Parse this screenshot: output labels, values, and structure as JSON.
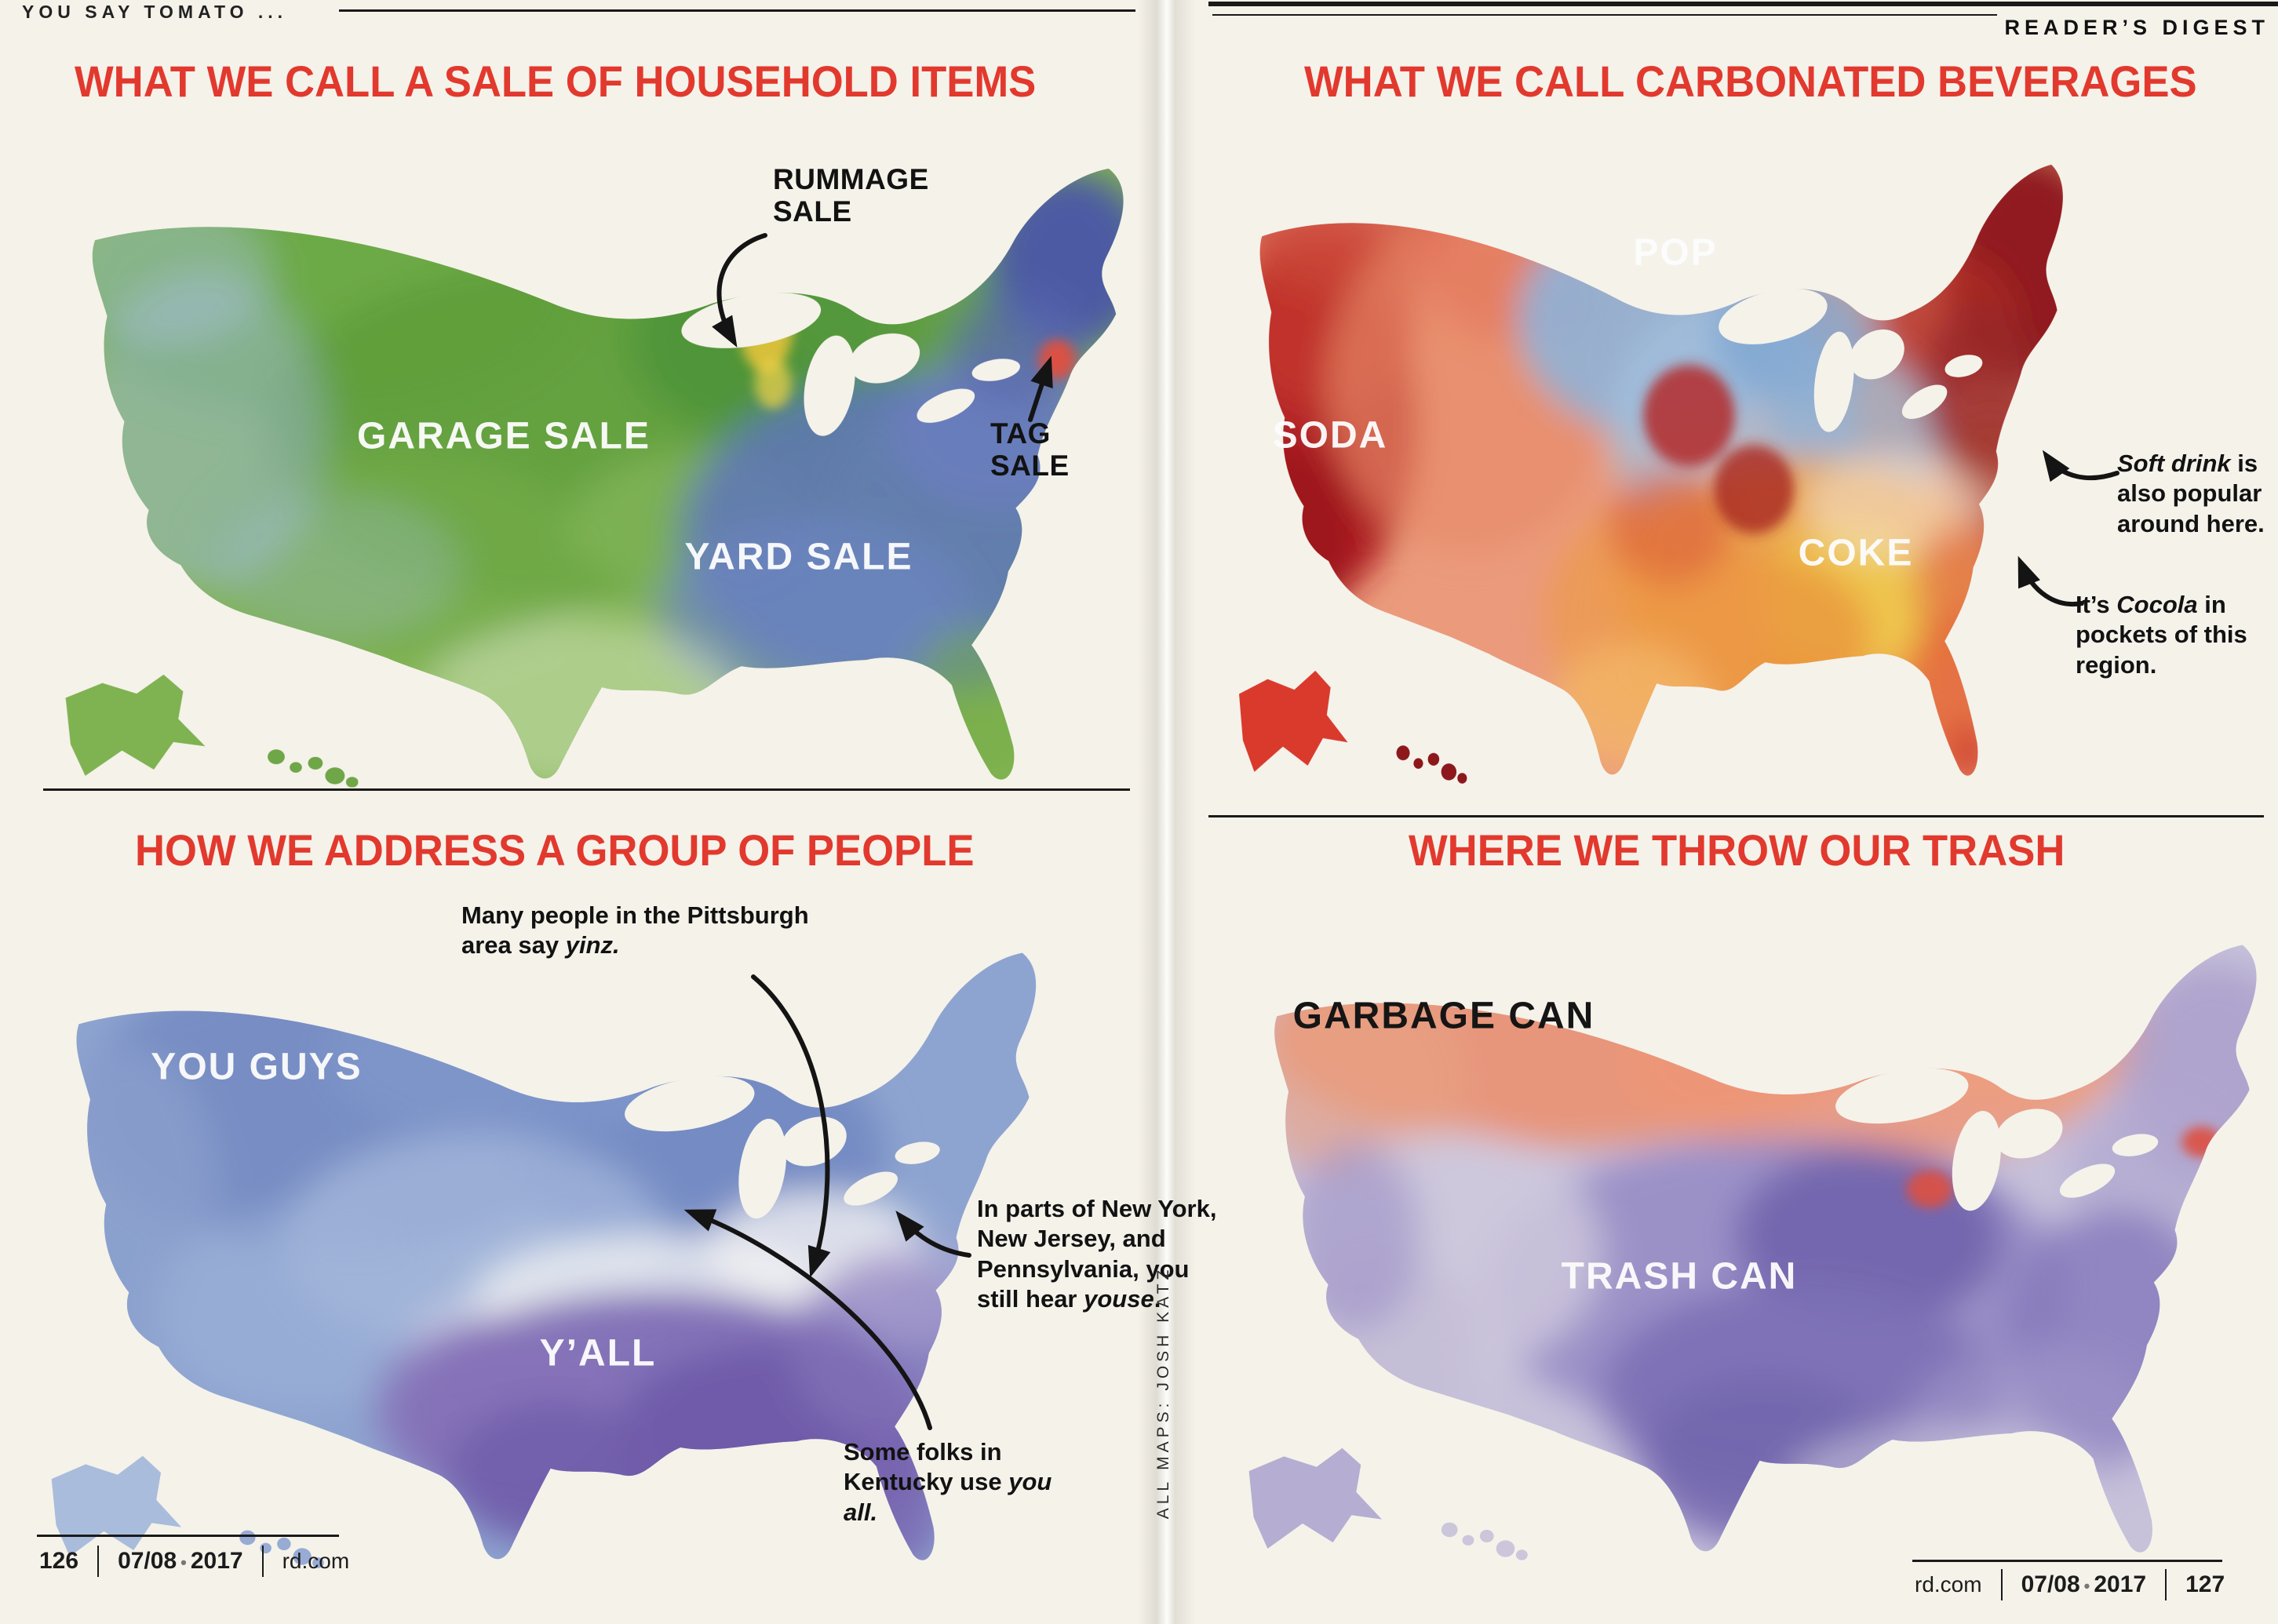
{
  "page": {
    "kicker": "YOU SAY TOMATO ...",
    "masthead": "READER’S DIGEST",
    "credit": "ALL MAPS: JOSH KATZ",
    "footer_left": {
      "page_number": "126",
      "date_month": "07/08",
      "date_sep": "•",
      "date_year": "2017",
      "site": "rd.com"
    },
    "footer_right": {
      "site": "rd.com",
      "date_month": "07/08",
      "date_sep": "•",
      "date_year": "2017",
      "page_number": "127"
    },
    "colors": {
      "accent_red": "#e2392e",
      "paper": "#f5f2ea",
      "ink": "#1a1a1a"
    }
  },
  "maps": {
    "sale": {
      "title": "WHAT WE CALL A SALE OF HOUSEHOLD ITEMS",
      "labels": {
        "garage": "GARAGE SALE",
        "yard": "YARD SALE"
      },
      "callouts": {
        "rummage": "RUMMAGE SALE",
        "tag": "TAG SALE"
      },
      "palette": {
        "garage_sale": "#5d9c3b",
        "yard_sale": "#5e76b8",
        "rummage_sale": "#e5c33c",
        "tag_sale": "#e0503f"
      }
    },
    "beverages": {
      "title": "WHAT WE CALL CARBONATED BEVERAGES",
      "labels": {
        "pop": "POP",
        "soda": "SODA",
        "coke": "COKE"
      },
      "callouts": {
        "soft_drink": [
          {
            "t": "Soft drink",
            "i": true
          },
          {
            "t": " is also popular around here.",
            "i": false
          }
        ],
        "cocola": [
          {
            "t": "It’s ",
            "i": false
          },
          {
            "t": "Cocola",
            "i": true
          },
          {
            "t": " in pockets of this region.",
            "i": false
          }
        ]
      },
      "palette": {
        "pop": "#8fb2d8",
        "soda": "#b01f22",
        "coke": "#efa143"
      }
    },
    "people": {
      "title": "HOW WE ADDRESS A GROUP OF PEOPLE",
      "labels": {
        "you_guys": "YOU GUYS",
        "yall": "Y’ALL"
      },
      "callouts": {
        "yinz": [
          {
            "t": "Many people in the Pittsburgh area say ",
            "i": false
          },
          {
            "t": "yinz.",
            "i": true
          }
        ],
        "youse": [
          {
            "t": "In parts of New York, New Jersey, and Pennsylvania, you still hear ",
            "i": false
          },
          {
            "t": "youse",
            "i": true
          },
          {
            "t": ".",
            "i": false
          }
        ],
        "you_all": [
          {
            "t": "Some folks in Kentucky use ",
            "i": false
          },
          {
            "t": "you all.",
            "i": true
          }
        ]
      },
      "palette": {
        "you_guys": "#7288c0",
        "yall": "#7a66b2"
      }
    },
    "trash": {
      "title": "WHERE WE THROW OUR TRASH",
      "labels": {
        "garbage": "GARBAGE CAN",
        "trash": "TRASH CAN"
      },
      "palette": {
        "garbage_can": "#ec8f6e",
        "trash_can": "#7d70b6"
      }
    }
  }
}
